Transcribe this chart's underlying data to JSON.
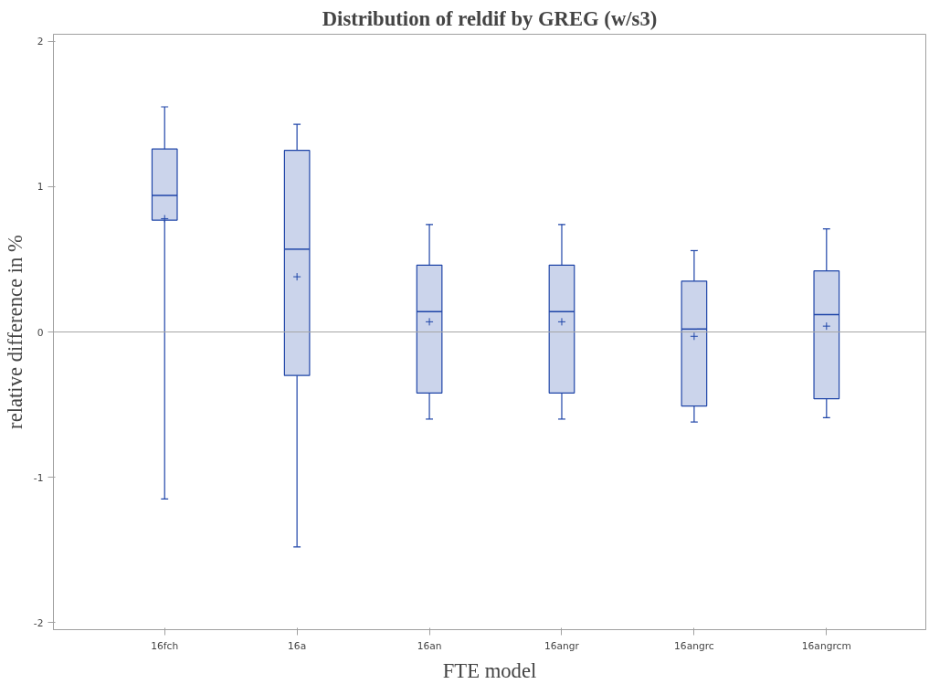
{
  "chart_data": {
    "type": "box",
    "title": "Distribution of reldif by GREG (w/s3)",
    "xlabel": "FTE model",
    "ylabel": "relative difference in %",
    "categories": [
      "16fch",
      "16a",
      "16an",
      "16angr",
      "16angrc",
      "16angrcm"
    ],
    "series": [
      {
        "color": "#1f45a8",
        "boxes": [
          {
            "low": -1.15,
            "q1": 0.77,
            "median": 0.94,
            "q3": 1.26,
            "high": 1.55,
            "mean": 0.78
          },
          {
            "low": -1.48,
            "q1": -0.3,
            "median": 0.57,
            "q3": 1.25,
            "high": 1.43,
            "mean": 0.38
          },
          {
            "low": -0.6,
            "q1": -0.42,
            "median": 0.14,
            "q3": 0.46,
            "high": 0.74,
            "mean": 0.07
          },
          {
            "low": -0.6,
            "q1": -0.42,
            "median": 0.14,
            "q3": 0.46,
            "high": 0.74,
            "mean": 0.07
          },
          {
            "low": -0.62,
            "q1": -0.51,
            "median": 0.02,
            "q3": 0.35,
            "high": 0.56,
            "mean": -0.03
          },
          {
            "low": -0.59,
            "q1": -0.46,
            "median": 0.12,
            "q3": 0.42,
            "high": 0.71,
            "mean": 0.04
          }
        ]
      }
    ],
    "ylim": [
      -2.05,
      2.05
    ],
    "yticks": [
      -2,
      -1,
      0,
      1,
      2
    ],
    "ref_lines": [
      {
        "axis": "y",
        "value": 0,
        "color": "#a6a6a6"
      }
    ],
    "grid": false,
    "marker": "cross"
  }
}
